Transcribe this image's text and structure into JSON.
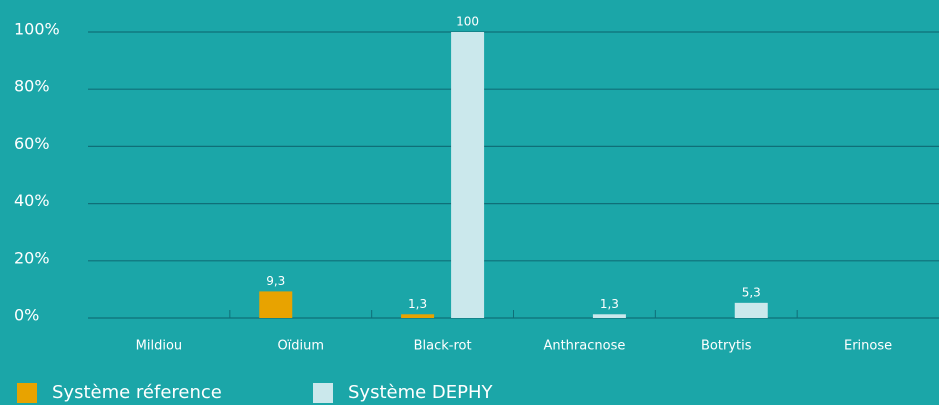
{
  "chart_data": {
    "type": "bar",
    "categories": [
      "Mildiou",
      "Oïdium",
      "Black-rot",
      "Anthracnose",
      "Botrytis",
      "Erinose"
    ],
    "series": [
      {
        "name": "Système réference",
        "color": "#e8a300",
        "values": [
          null,
          9.3,
          1.3,
          null,
          null,
          null
        ],
        "value_labels": [
          null,
          "9,3",
          "1,3",
          null,
          null,
          null
        ]
      },
      {
        "name": "Système DEPHY",
        "color": "#cbe8ec",
        "values": [
          null,
          null,
          100,
          1.3,
          5.3,
          null
        ],
        "value_labels": [
          null,
          null,
          "100",
          "1,3",
          "5,3",
          null
        ]
      }
    ],
    "ylim": [
      0,
      100
    ],
    "yticks": [
      {
        "value": 0,
        "label": "0%"
      },
      {
        "value": 20,
        "label": "20%"
      },
      {
        "value": 40,
        "label": "40%"
      },
      {
        "value": 60,
        "label": "60%"
      },
      {
        "value": 80,
        "label": "80%"
      },
      {
        "value": 100,
        "label": "100%"
      }
    ],
    "grid": true
  }
}
